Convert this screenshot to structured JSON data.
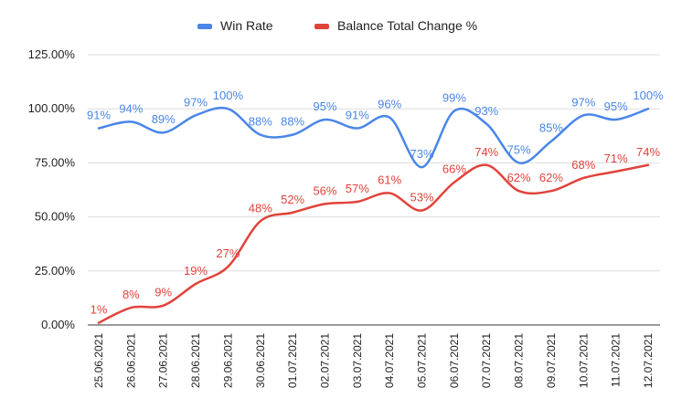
{
  "chart_data": {
    "type": "line",
    "title": "",
    "xlabel": "",
    "ylabel": "",
    "ylim": [
      0,
      125
    ],
    "yticks": [
      "0.00%",
      "25.00%",
      "50.00%",
      "75.00%",
      "100.00%",
      "125.00%"
    ],
    "grid": true,
    "legend_position": "top",
    "categories": [
      "25.06.2021",
      "26.06.2021",
      "27.06.2021",
      "28.06.2021",
      "29.06.2021",
      "30.06.2021",
      "01.07.2021",
      "02.07.2021",
      "03.07.2021",
      "04.07.2021",
      "05.07.2021",
      "06.07.2021",
      "07.07.2021",
      "08.07.2021",
      "09.07.2021",
      "10.07.2021",
      "11.07.2021",
      "12.07.2021"
    ],
    "series": [
      {
        "name": "Win Rate",
        "color": "#4a86e8",
        "values": [
          91,
          94,
          89,
          97,
          100,
          88,
          88,
          95,
          91,
          96,
          73,
          99,
          93,
          75,
          85,
          97,
          95,
          100
        ],
        "labels": [
          "91%",
          "94%",
          "89%",
          "97%",
          "100%",
          "88%",
          "88%",
          "95%",
          "91%",
          "96%",
          "73%",
          "99%",
          "93%",
          "75%",
          "85%",
          "97%",
          "95%",
          "100%"
        ]
      },
      {
        "name": "Balance Total Change %",
        "color": "#e0433a",
        "values": [
          1,
          8,
          9,
          19,
          27,
          48,
          52,
          56,
          57,
          61,
          53,
          66,
          74,
          62,
          62,
          68,
          71,
          74
        ],
        "labels": [
          "1%",
          "8%",
          "9%",
          "19%",
          "27%",
          "48%",
          "52%",
          "56%",
          "57%",
          "61%",
          "53%",
          "66%",
          "74%",
          "62%",
          "62%",
          "68%",
          "71%",
          "74%"
        ]
      }
    ]
  }
}
